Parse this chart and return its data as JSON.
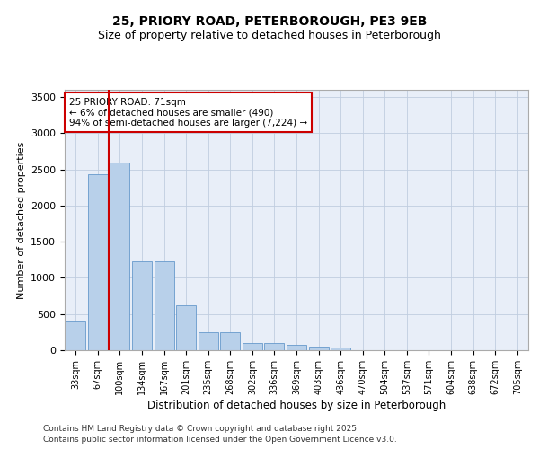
{
  "title1": "25, PRIORY ROAD, PETERBOROUGH, PE3 9EB",
  "title2": "Size of property relative to detached houses in Peterborough",
  "xlabel": "Distribution of detached houses by size in Peterborough",
  "ylabel": "Number of detached properties",
  "categories": [
    "33sqm",
    "67sqm",
    "100sqm",
    "134sqm",
    "167sqm",
    "201sqm",
    "235sqm",
    "268sqm",
    "302sqm",
    "336sqm",
    "369sqm",
    "403sqm",
    "436sqm",
    "470sqm",
    "504sqm",
    "537sqm",
    "571sqm",
    "604sqm",
    "638sqm",
    "672sqm",
    "705sqm"
  ],
  "values": [
    400,
    2430,
    2600,
    1230,
    1230,
    625,
    250,
    250,
    100,
    100,
    75,
    50,
    40,
    0,
    0,
    0,
    0,
    0,
    0,
    0,
    0
  ],
  "bar_color": "#b8d0ea",
  "bar_edge_color": "#6699cc",
  "vline_color": "#cc0000",
  "vline_x": 1.5,
  "annotation_text": "25 PRIORY ROAD: 71sqm\n← 6% of detached houses are smaller (490)\n94% of semi-detached houses are larger (7,224) →",
  "annotation_box_color": "#ffffff",
  "annotation_box_edge_color": "#cc0000",
  "ylim": [
    0,
    3600
  ],
  "yticks": [
    0,
    500,
    1000,
    1500,
    2000,
    2500,
    3000,
    3500
  ],
  "bg_color": "#e8eef8",
  "footer1": "Contains HM Land Registry data © Crown copyright and database right 2025.",
  "footer2": "Contains public sector information licensed under the Open Government Licence v3.0.",
  "title_fontsize": 10,
  "subtitle_fontsize": 9,
  "footer_fontsize": 6.5
}
